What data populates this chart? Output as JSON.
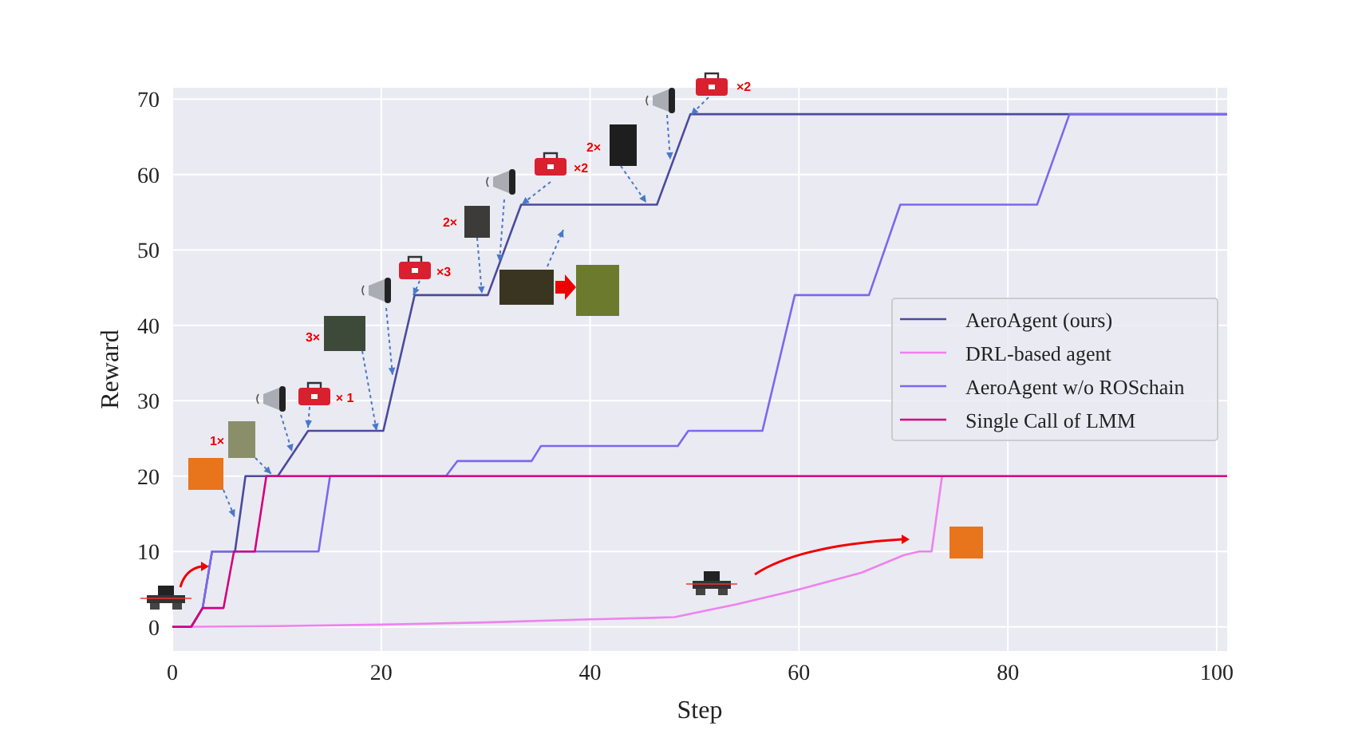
{
  "chart_data": {
    "type": "line",
    "xlabel": "Step",
    "ylabel": "Reward",
    "xlim": [
      0,
      101
    ],
    "ylim": [
      -3.2,
      71.5
    ],
    "xticks": [
      0,
      20,
      40,
      60,
      80,
      100
    ],
    "yticks": [
      0,
      10,
      20,
      30,
      40,
      50,
      60,
      70
    ],
    "grid": true,
    "legend": "right",
    "line_style": "solid",
    "marker": "none",
    "series": [
      {
        "name": "AeroAgent (ours)",
        "color": "#4b4a9e",
        "x": [
          0,
          1.8,
          2.9,
          3.8,
          6,
          7,
          10.1,
          13,
          20.2,
          23.2,
          30.2,
          33.4,
          46.4,
          49.6,
          101
        ],
        "values": [
          0,
          0,
          2.5,
          10,
          10,
          20,
          20,
          26,
          26,
          44,
          44,
          56,
          56,
          68,
          68
        ]
      },
      {
        "name": "DRL-based agent",
        "color": "#ee82ee",
        "x": [
          0,
          10,
          20,
          30,
          40,
          46,
          48.1,
          54,
          59.8,
          66,
          70,
          71.5,
          72.7,
          73.7
        ],
        "values": [
          0,
          0.1,
          0.3,
          0.6,
          1,
          1.2,
          1.3,
          3,
          4.9,
          7.2,
          9.5,
          10,
          10,
          20
        ]
      },
      {
        "name": "AeroAgent w/o ROSchain",
        "color": "#7b68ee",
        "x": [
          0,
          1.8,
          2.9,
          3.8,
          14,
          15.1,
          26.2,
          27.3,
          34.4,
          35.3,
          48.4,
          49.4,
          56.5,
          59.6,
          66.7,
          69.7,
          82.8,
          85.9,
          101
        ],
        "values": [
          0,
          0,
          2.5,
          10,
          10,
          20,
          20,
          22,
          22,
          24,
          24,
          26,
          26,
          44,
          44,
          56,
          56,
          68,
          68
        ]
      },
      {
        "name": "Single Call of LMM",
        "color": "#d4007f",
        "x": [
          0,
          1.8,
          2.9,
          4.9,
          5.9,
          7.9,
          9,
          101
        ],
        "values": [
          0,
          0,
          2.5,
          2.5,
          10,
          10,
          20,
          20
        ]
      }
    ],
    "annotations": [
      "1×",
      "× 1",
      "3×",
      "×3",
      "2×",
      "×2",
      "2×",
      "×2"
    ]
  }
}
